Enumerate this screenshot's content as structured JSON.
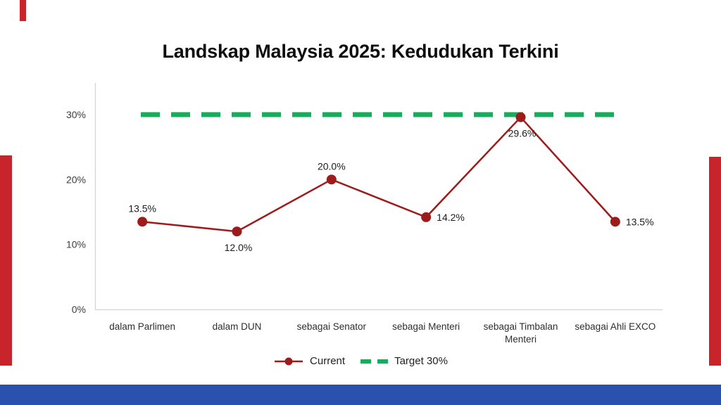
{
  "header": {
    "title": "Landskap Malaysia 2025: Kedudukan Terkini"
  },
  "decor": {
    "red": "#C8242B",
    "blue": "#2B51AE"
  },
  "chart_data": {
    "type": "line",
    "title": "Landskap Malaysia 2025: Kedudukan Terkini",
    "categories": [
      "dalam Parlimen",
      "dalam DUN",
      "sebagai Senator",
      "sebagai Menteri",
      "sebagai Timbalan Menteri",
      "sebagai Ahli EXCO"
    ],
    "series": [
      {
        "name": "Current",
        "type": "line",
        "color": "#9E1B1B",
        "values": [
          13.5,
          12.0,
          20.0,
          14.2,
          29.6,
          13.5
        ],
        "data_labels": [
          "13.5%",
          "12.0%",
          "20.0%",
          "14.2%",
          "29.6%",
          "13.5%"
        ],
        "label_placement": [
          "above",
          "below",
          "above",
          "right",
          "below",
          "right"
        ]
      },
      {
        "name": "Target 30%",
        "type": "target_line",
        "color": "#14AE5C",
        "value": 30,
        "style": "dashed"
      }
    ],
    "yticks": {
      "values": [
        0,
        10,
        20,
        30
      ],
      "labels": [
        "0%",
        "10%",
        "20%",
        "30%"
      ]
    },
    "ylim": [
      0,
      34
    ],
    "grid": false,
    "legend_position": "bottom"
  }
}
